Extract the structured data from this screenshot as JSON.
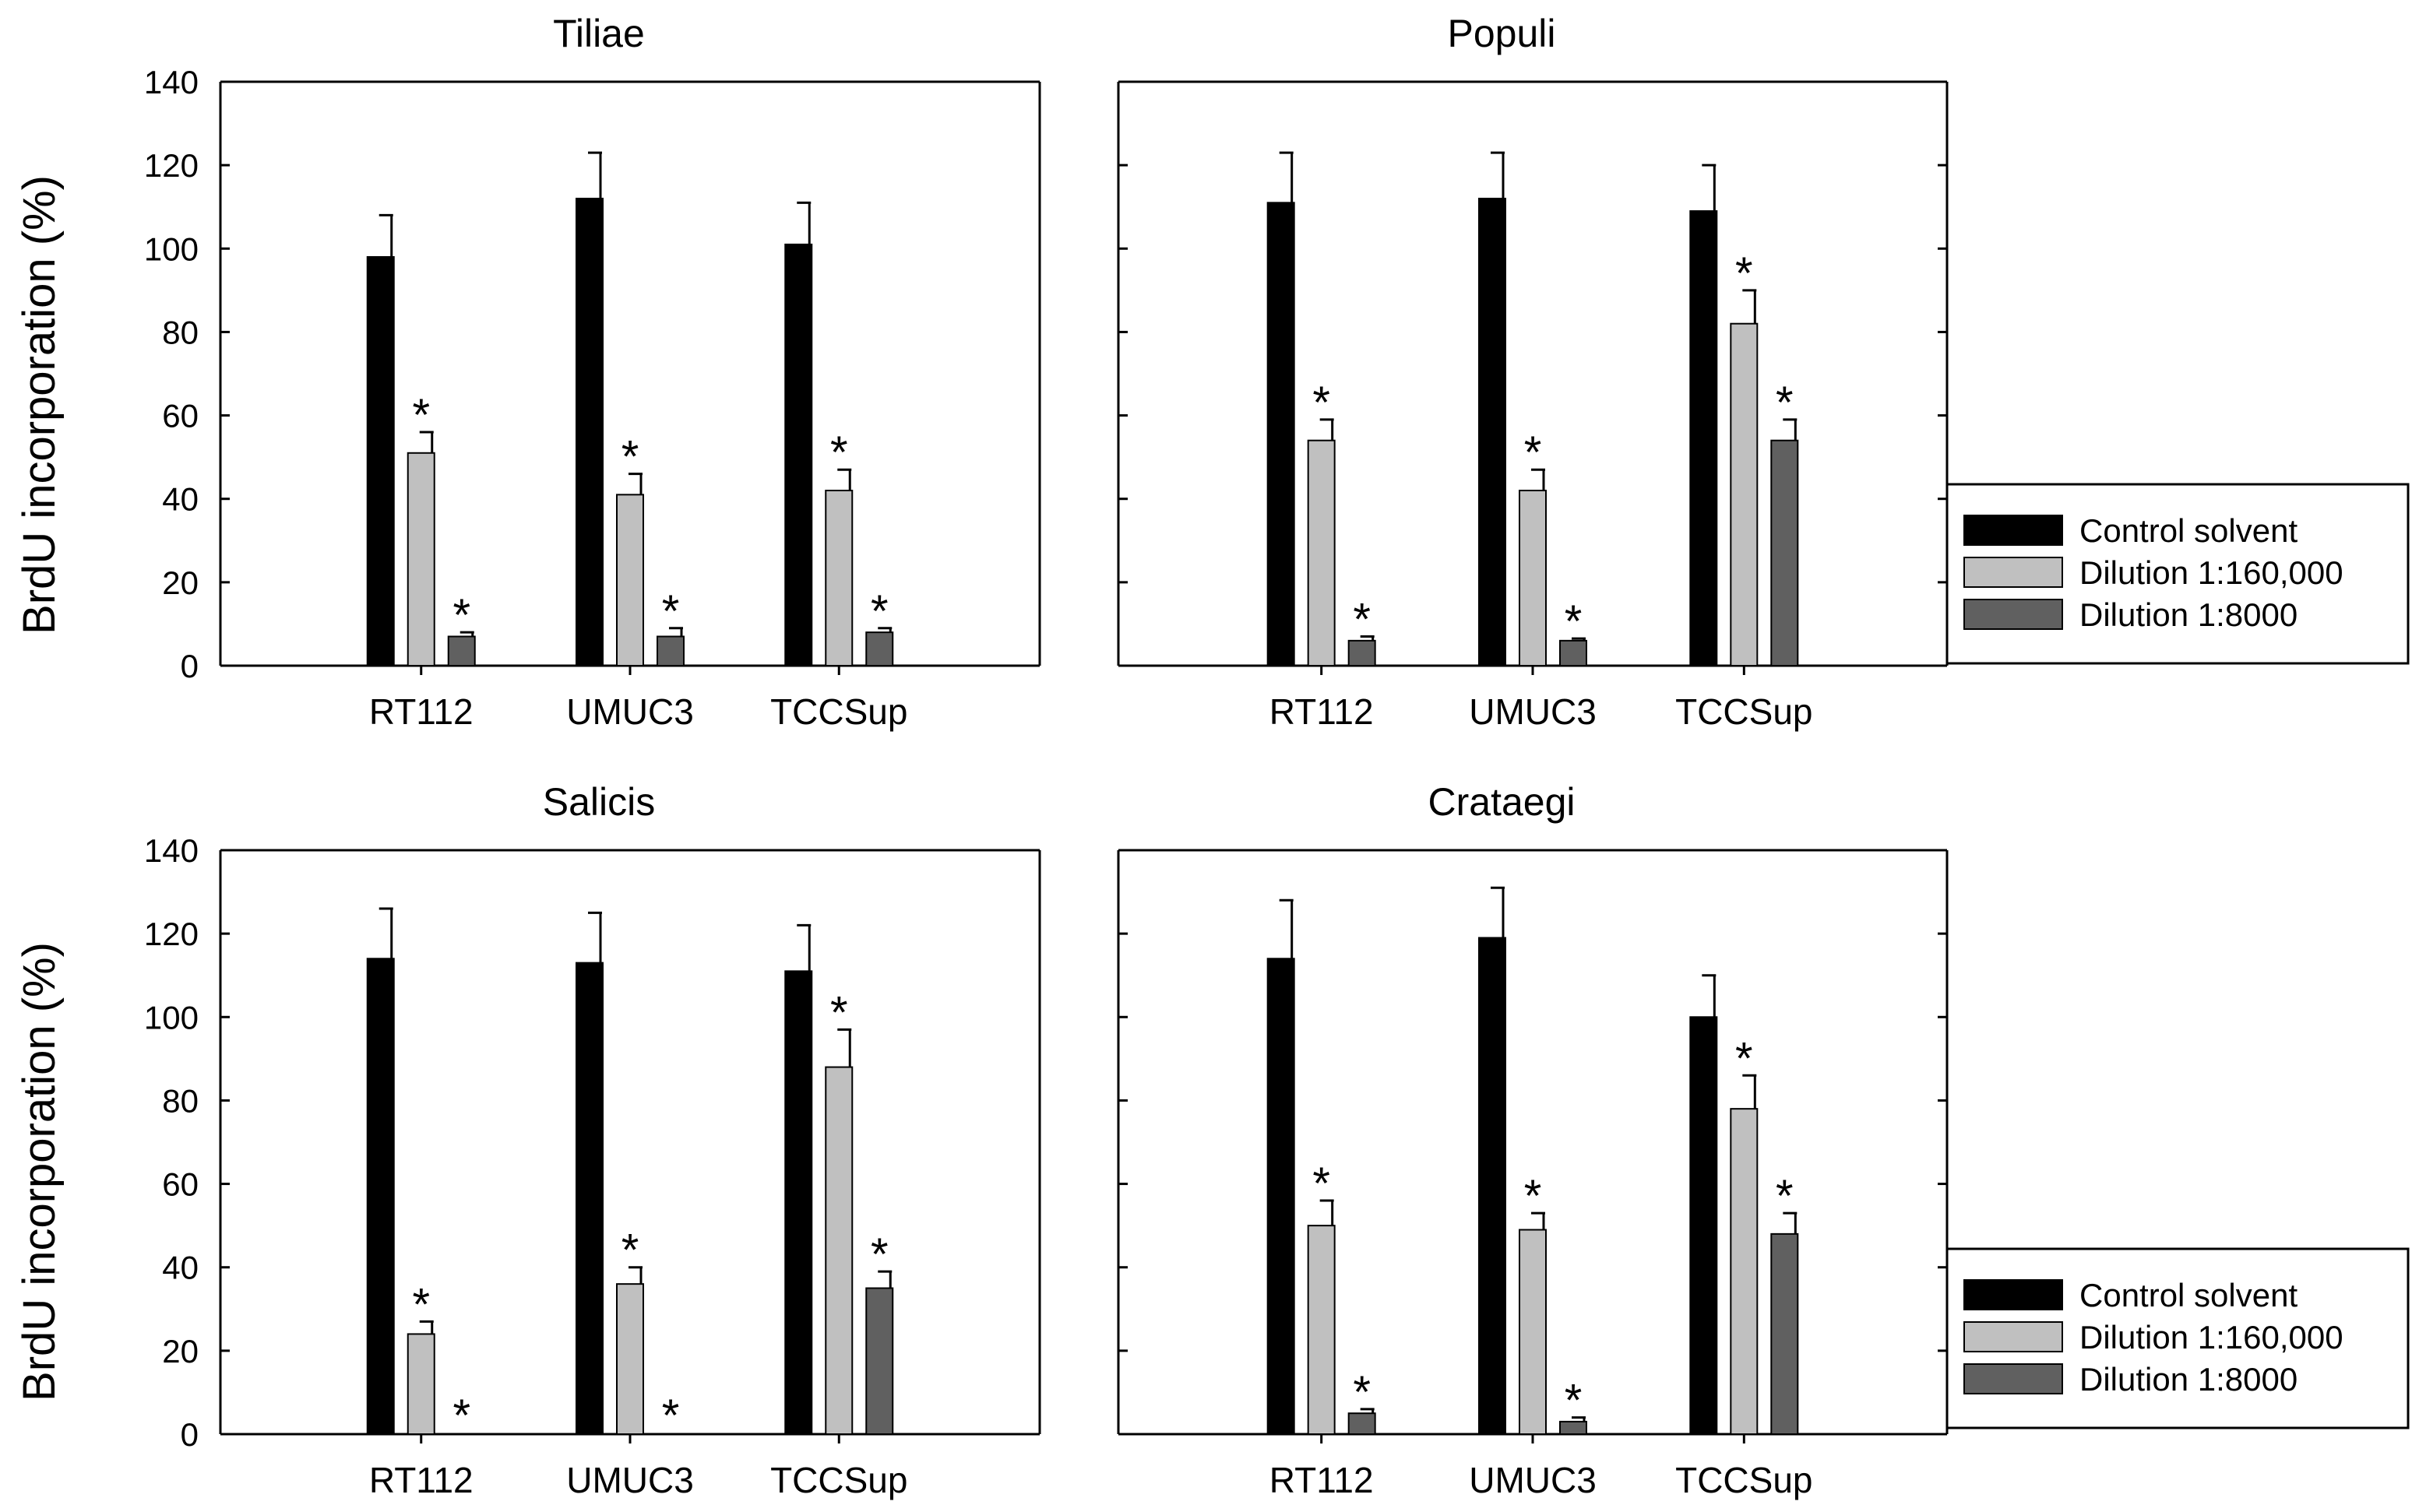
{
  "figure": {
    "y_axis_title": "BrdU incorporation (%)",
    "legend": {
      "entries": [
        {
          "label": "Control solvent",
          "color": "#000000"
        },
        {
          "label": "Dilution 1:160,000",
          "color": "#c0c0c0"
        },
        {
          "label": "Dilution 1:8000",
          "color": "#606060"
        }
      ]
    }
  },
  "chart_data": [
    {
      "type": "bar",
      "title": "Tiliae",
      "categories": [
        "RT112",
        "UMUC3",
        "TCCSup"
      ],
      "ylabel": "BrdU incorporation (%)",
      "ylim": [
        0,
        140
      ],
      "yticks": [
        0,
        20,
        40,
        60,
        80,
        100,
        120,
        140
      ],
      "series": [
        {
          "name": "Control solvent",
          "values": [
            98,
            112,
            101
          ],
          "errors": [
            10,
            11,
            10
          ],
          "significant": [
            false,
            false,
            false
          ]
        },
        {
          "name": "Dilution 1:160,000",
          "values": [
            51,
            41,
            42
          ],
          "errors": [
            5,
            5,
            5
          ],
          "significant": [
            true,
            true,
            true
          ]
        },
        {
          "name": "Dilution 1:8000",
          "values": [
            7,
            7,
            8
          ],
          "errors": [
            1,
            2,
            1
          ],
          "significant": [
            true,
            true,
            true
          ]
        }
      ]
    },
    {
      "type": "bar",
      "title": "Populi",
      "categories": [
        "RT112",
        "UMUC3",
        "TCCSup"
      ],
      "ylabel": "BrdU incorporation (%)",
      "ylim": [
        0,
        140
      ],
      "yticks": [
        0,
        20,
        40,
        60,
        80,
        100,
        120,
        140
      ],
      "series": [
        {
          "name": "Control solvent",
          "values": [
            111,
            112,
            109
          ],
          "errors": [
            12,
            11,
            11
          ],
          "significant": [
            false,
            false,
            false
          ]
        },
        {
          "name": "Dilution 1:160,000",
          "values": [
            54,
            42,
            82
          ],
          "errors": [
            5,
            5,
            8
          ],
          "significant": [
            true,
            true,
            true
          ]
        },
        {
          "name": "Dilution 1:8000",
          "values": [
            6,
            6,
            54
          ],
          "errors": [
            1,
            0.5,
            5
          ],
          "significant": [
            true,
            true,
            true
          ]
        }
      ]
    },
    {
      "type": "bar",
      "title": "Salicis",
      "categories": [
        "RT112",
        "UMUC3",
        "TCCSup"
      ],
      "ylabel": "BrdU incorporation (%)",
      "ylim": [
        0,
        140
      ],
      "yticks": [
        0,
        20,
        40,
        60,
        80,
        100,
        120,
        140
      ],
      "series": [
        {
          "name": "Control solvent",
          "values": [
            114,
            113,
            111
          ],
          "errors": [
            12,
            12,
            11
          ],
          "significant": [
            false,
            false,
            false
          ]
        },
        {
          "name": "Dilution 1:160,000",
          "values": [
            24,
            36,
            88
          ],
          "errors": [
            3,
            4,
            9
          ],
          "significant": [
            true,
            true,
            true
          ]
        },
        {
          "name": "Dilution 1:8000",
          "values": [
            0,
            0,
            35
          ],
          "errors": [
            0,
            0,
            4
          ],
          "significant": [
            true,
            true,
            true
          ]
        }
      ]
    },
    {
      "type": "bar",
      "title": "Crataegi",
      "categories": [
        "RT112",
        "UMUC3",
        "TCCSup"
      ],
      "ylabel": "BrdU incorporation (%)",
      "ylim": [
        0,
        140
      ],
      "yticks": [
        0,
        20,
        40,
        60,
        80,
        100,
        120,
        140
      ],
      "series": [
        {
          "name": "Control solvent",
          "values": [
            114,
            119,
            100
          ],
          "errors": [
            14,
            12,
            10
          ],
          "significant": [
            false,
            false,
            false
          ]
        },
        {
          "name": "Dilution 1:160,000",
          "values": [
            50,
            49,
            78
          ],
          "errors": [
            6,
            4,
            8
          ],
          "significant": [
            true,
            true,
            true
          ]
        },
        {
          "name": "Dilution 1:8000",
          "values": [
            5,
            3,
            48
          ],
          "errors": [
            1,
            1,
            5
          ],
          "significant": [
            true,
            true,
            true
          ]
        }
      ]
    }
  ]
}
